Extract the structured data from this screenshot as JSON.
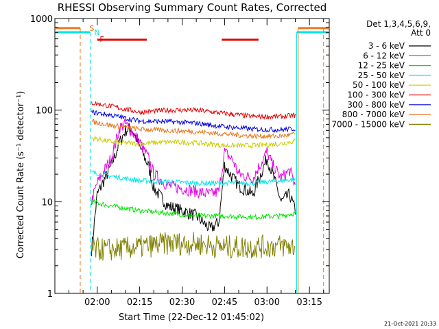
{
  "chart_data": {
    "type": "line",
    "title": "RHESSI Observing Summary Count Rates, Corrected",
    "xlabel": "Start Time (22-Dec-12 01:45:02)",
    "ylabel": "Corrected Count Rate (s⁻¹ detector⁻¹)",
    "ylog": true,
    "ylim": [
      1,
      1000
    ],
    "xlim": [
      "01:45:02",
      "03:22:00"
    ],
    "x_ticks": [
      "02:00",
      "02:15",
      "02:30",
      "02:45",
      "03:00",
      "03:15"
    ],
    "y_ticks": [
      "1",
      "10",
      "100",
      "1000"
    ],
    "legend_header": [
      "Det 1,3,4,5,6,9,",
      "Att 0"
    ],
    "legend_position": "right",
    "markers": [
      {
        "label": "S",
        "color": "#e8761a"
      },
      {
        "label": "N",
        "color": "#00e5e5"
      },
      {
        "label": "F",
        "color": "#e60000"
      }
    ],
    "series": [
      {
        "name": "3 - 6 keV",
        "color": "#000000",
        "x": [
          "01:58",
          "02:00",
          "02:05",
          "02:08",
          "02:10",
          "02:12",
          "02:15",
          "02:18",
          "02:20",
          "02:25",
          "02:30",
          "02:35",
          "02:40",
          "02:43",
          "02:45",
          "02:48",
          "02:50",
          "02:55",
          "03:00",
          "03:02",
          "03:05",
          "03:08",
          "03:10"
        ],
        "y": [
          3,
          12,
          25,
          45,
          60,
          65,
          40,
          25,
          14,
          9,
          8,
          7,
          5,
          6,
          25,
          18,
          15,
          12,
          30,
          20,
          10,
          12,
          8
        ]
      },
      {
        "name": "6 - 12 keV",
        "color": "#e600e6",
        "x": [
          "01:58",
          "02:00",
          "02:05",
          "02:08",
          "02:10",
          "02:12",
          "02:15",
          "02:18",
          "02:20",
          "02:25",
          "02:30",
          "02:35",
          "02:40",
          "02:43",
          "02:45",
          "02:48",
          "02:50",
          "02:55",
          "03:00",
          "03:02",
          "03:05",
          "03:08",
          "03:10"
        ],
        "y": [
          10,
          16,
          30,
          65,
          70,
          60,
          45,
          30,
          20,
          15,
          14,
          13,
          12,
          13,
          35,
          28,
          20,
          18,
          35,
          25,
          18,
          22,
          15
        ]
      },
      {
        "name": "12 - 25 keV",
        "color": "#00e600",
        "x": [
          "01:58",
          "02:05",
          "02:15",
          "02:25",
          "02:35",
          "02:45",
          "02:55",
          "03:05",
          "03:10"
        ],
        "y": [
          10,
          9,
          8,
          7.5,
          7,
          7,
          6.8,
          7,
          7.5
        ]
      },
      {
        "name": "25 - 50 keV",
        "color": "#00e5e5",
        "x": [
          "01:58",
          "02:05",
          "02:15",
          "02:25",
          "02:35",
          "02:45",
          "02:55",
          "03:05",
          "03:10"
        ],
        "y": [
          21,
          19,
          17,
          16.5,
          16,
          16,
          16,
          17,
          17.5
        ]
      },
      {
        "name": "50 - 100 keV",
        "color": "#cccc00",
        "x": [
          "01:58",
          "02:05",
          "02:15",
          "02:25",
          "02:35",
          "02:45",
          "02:55",
          "03:05",
          "03:10"
        ],
        "y": [
          50,
          45,
          43,
          45,
          44,
          41,
          41,
          43,
          46
        ]
      },
      {
        "name": "100 - 300 keV",
        "color": "#e60000",
        "x": [
          "01:58",
          "02:05",
          "02:15",
          "02:25",
          "02:35",
          "02:45",
          "02:55",
          "03:05",
          "03:10"
        ],
        "y": [
          120,
          110,
          95,
          100,
          100,
          92,
          85,
          85,
          88
        ]
      },
      {
        "name": "300 - 800 keV",
        "color": "#0000e6",
        "x": [
          "01:58",
          "02:05",
          "02:15",
          "02:25",
          "02:35",
          "02:45",
          "02:55",
          "03:05",
          "03:10"
        ],
        "y": [
          95,
          88,
          76,
          75,
          72,
          66,
          62,
          61,
          63
        ]
      },
      {
        "name": "800 - 7000 keV",
        "color": "#e8761a",
        "x": [
          "01:58",
          "02:05",
          "02:15",
          "02:25",
          "02:35",
          "02:45",
          "02:55",
          "03:05",
          "03:10"
        ],
        "y": [
          75,
          68,
          62,
          60,
          58,
          55,
          52,
          52,
          55
        ]
      },
      {
        "name": "7000 - 15000 keV",
        "color": "#808000",
        "x": [
          "01:58",
          "02:05",
          "02:15",
          "02:25",
          "02:35",
          "02:45",
          "02:55",
          "03:05",
          "03:10"
        ],
        "y": [
          3,
          3,
          3.2,
          3.5,
          3.5,
          3.2,
          3.2,
          3.3,
          3.2
        ]
      }
    ]
  },
  "footer_timestamp": "21-Oct-2021 20:33"
}
